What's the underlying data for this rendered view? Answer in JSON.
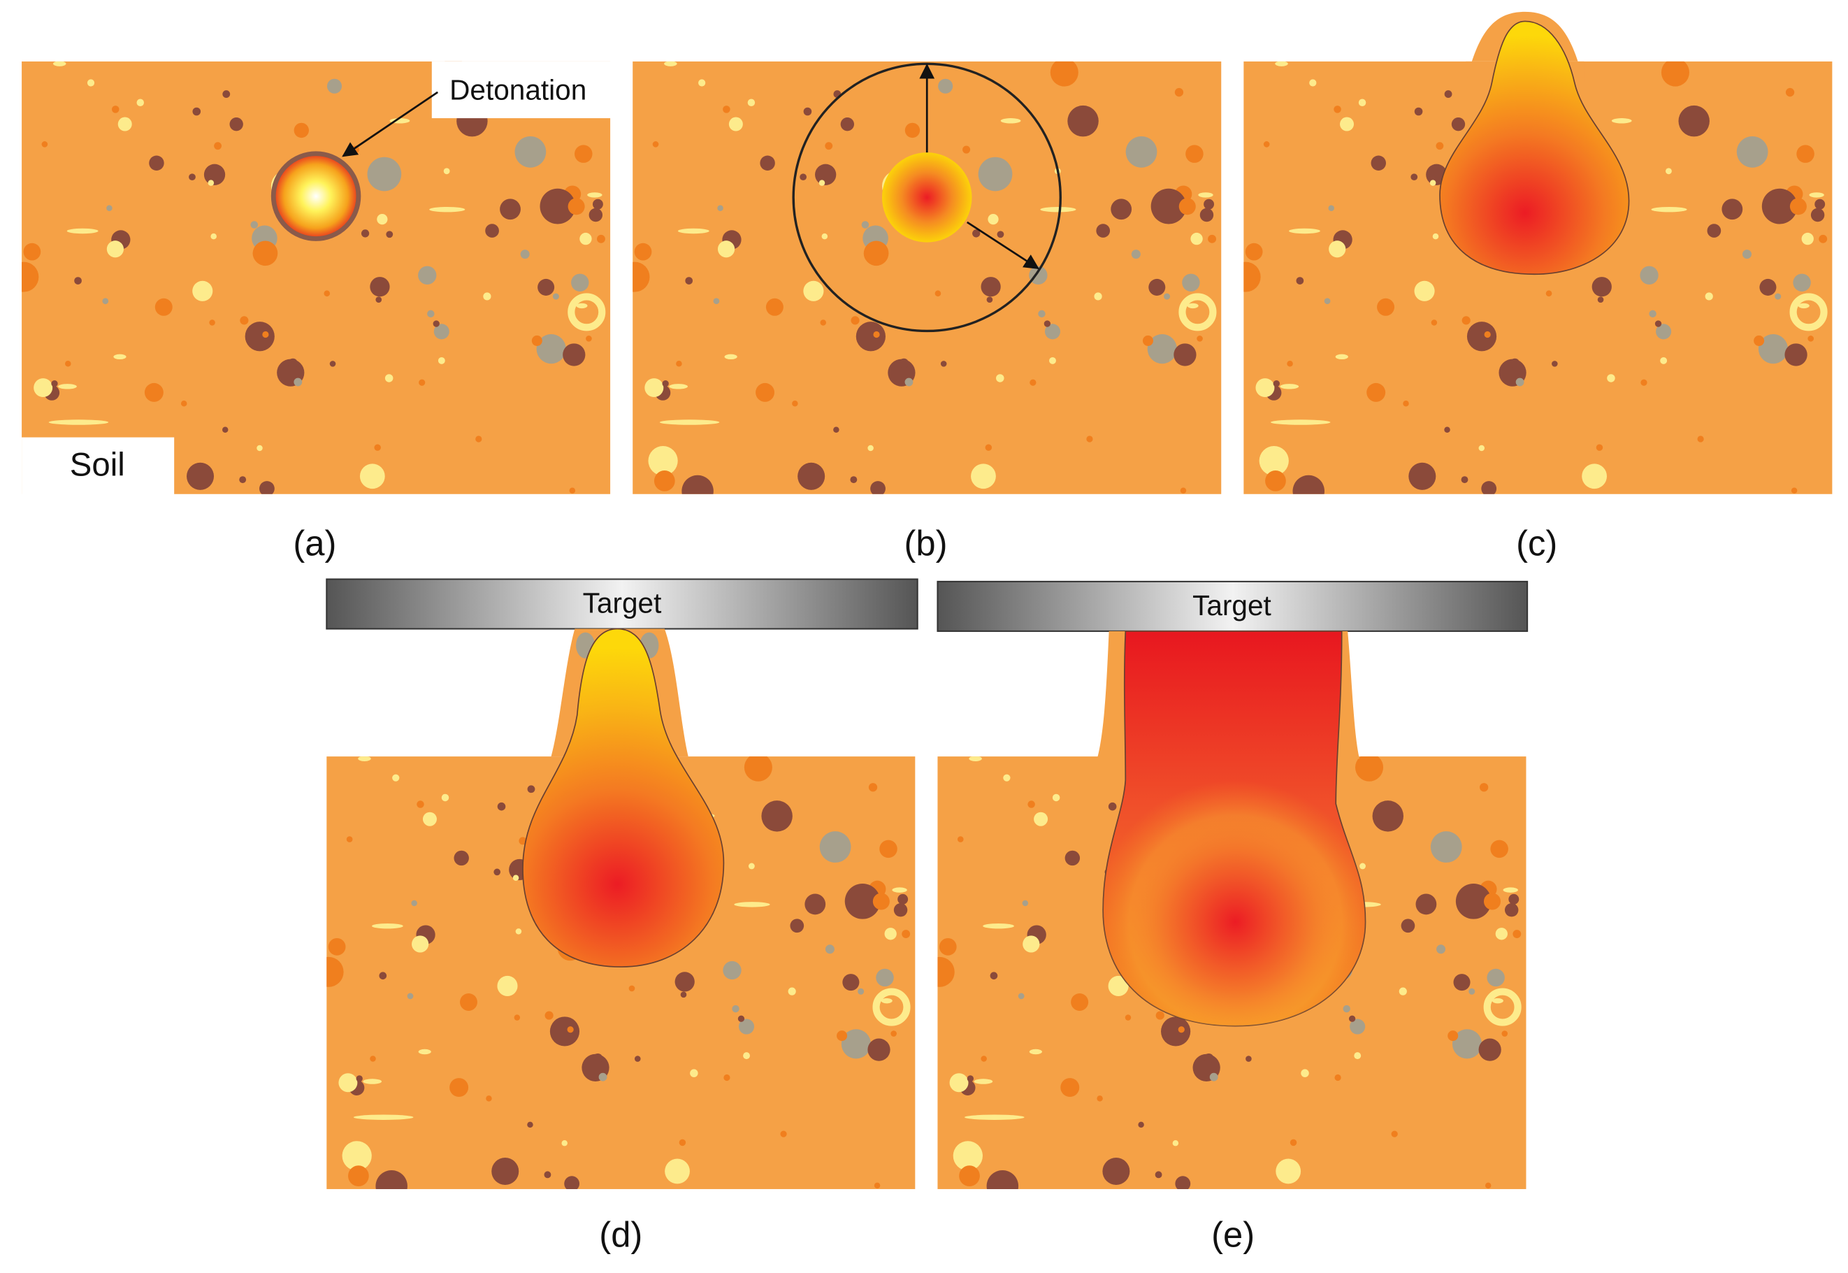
{
  "annotations": {
    "detonation": "Detonation",
    "soil": "Soil"
  },
  "panels": [
    {
      "label": "(a)"
    },
    {
      "label": "(b)"
    },
    {
      "label": "(c)"
    },
    {
      "label": "(d)",
      "target": "Target"
    },
    {
      "label": "(e)",
      "target": "Target"
    }
  ]
}
